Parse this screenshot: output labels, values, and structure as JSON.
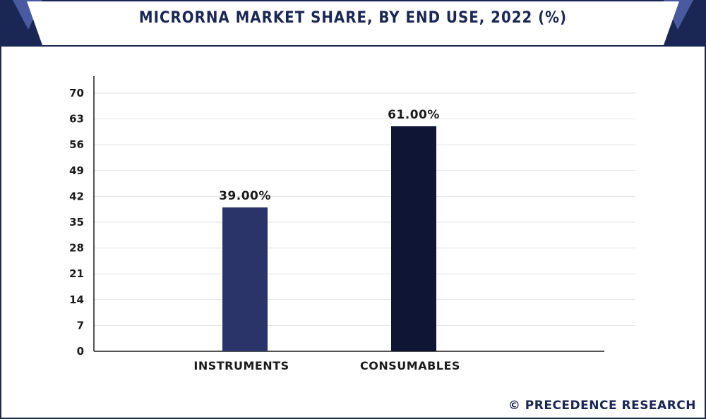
{
  "title": "MICRORNA MARKET SHARE, BY END USE, 2022 (%)",
  "footer": "© PRECEDENCE RESEARCH",
  "colors": {
    "navy": "#1a2755",
    "corner_accent": "#4a5aa0",
    "bar_instruments": "#2b3468",
    "bar_consumables": "#0f1535",
    "grid": "#e2e2e2",
    "axis": "#1b1b1b"
  },
  "chart_data": {
    "type": "bar",
    "title": "MICRORNA MARKET SHARE, BY END USE, 2022 (%)",
    "xlabel": "",
    "ylabel": "",
    "categories": [
      "INSTRUMENTS",
      "CONSUMABLES"
    ],
    "values": [
      39,
      61
    ],
    "value_labels": [
      "39.00%",
      "61.00%"
    ],
    "ylim": [
      0,
      70
    ],
    "yticks": [
      0,
      7,
      14,
      21,
      28,
      35,
      42,
      49,
      56,
      63,
      70
    ],
    "grid": true,
    "legend": "none"
  }
}
